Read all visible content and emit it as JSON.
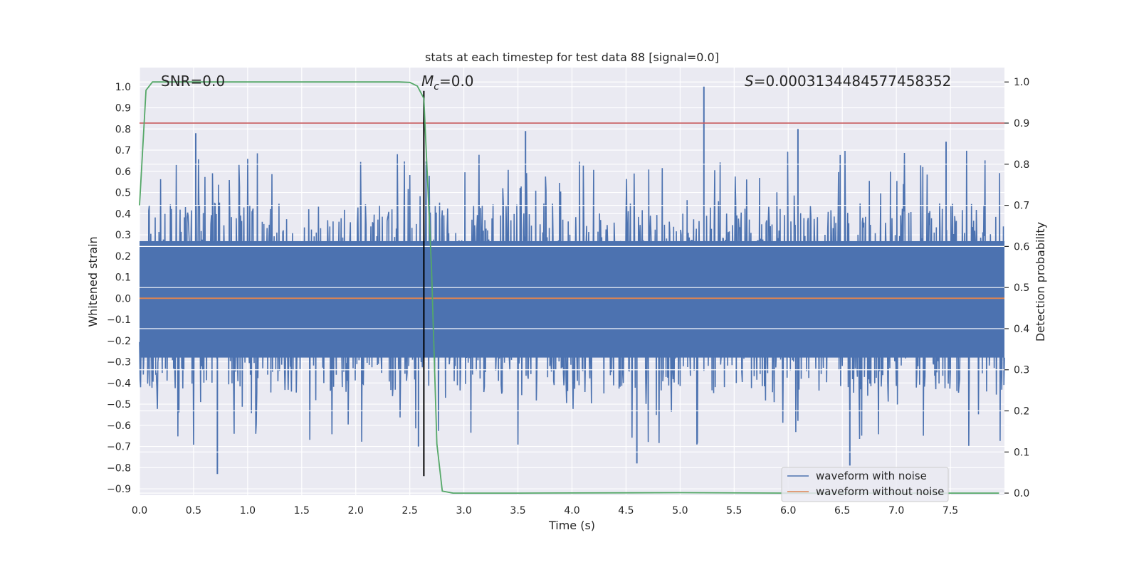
{
  "chart_data": {
    "type": "line",
    "title": "stats at each timestep for test data 88 [signal=0.0]",
    "xlabel": "Time (s)",
    "ylabel_left": "Whitened strain",
    "ylabel_right": "Detection probability",
    "xlim": [
      0.0,
      8.0
    ],
    "ylim_left": [
      -0.93,
      1.09
    ],
    "ylim_right": [
      -0.005,
      1.035
    ],
    "x_ticks": [
      "0.0",
      "0.5",
      "1.0",
      "1.5",
      "2.0",
      "2.5",
      "3.0",
      "3.5",
      "4.0",
      "4.5",
      "5.0",
      "5.5",
      "6.0",
      "6.5",
      "7.0",
      "7.5"
    ],
    "y_left_ticks": [
      "1.0",
      "0.9",
      "0.8",
      "0.7",
      "0.6",
      "0.5",
      "0.4",
      "0.3",
      "0.2",
      "0.1",
      "0.0",
      "−0.1",
      "−0.2",
      "−0.3",
      "−0.4",
      "−0.5",
      "−0.6",
      "−0.7",
      "−0.8",
      "−0.9"
    ],
    "y_right_ticks": [
      "1.0",
      "0.9",
      "0.8",
      "0.7",
      "0.6",
      "0.5",
      "0.4",
      "0.3",
      "0.2",
      "0.1",
      "0.0"
    ],
    "grid": true,
    "legend_position": "lower-right",
    "annotations": {
      "snr": "SNR=0.0",
      "mc_symbol": "M",
      "mc_subscript": "c",
      "mc_value": "=0.0",
      "s_symbol": "S",
      "s_value": "=0.0003134484577458352"
    },
    "series": [
      {
        "name": "waveform with noise",
        "axis": "left",
        "color": "#4c72b0",
        "envelope": {
          "upper_typical": 0.45,
          "upper_max": 1.0,
          "lower_typical": -0.45,
          "lower_min": -0.83,
          "peak_points": [
            {
              "x": 0.52,
              "y": 0.78
            },
            {
              "x": 0.72,
              "y": -0.83
            },
            {
              "x": 3.57,
              "y": 0.79
            },
            {
              "x": 5.22,
              "y": 1.0
            },
            {
              "x": 6.57,
              "y": -0.79
            },
            {
              "x": 4.6,
              "y": -0.78
            },
            {
              "x": 6.09,
              "y": 0.8
            },
            {
              "x": 7.46,
              "y": 0.74
            },
            {
              "x": 2.58,
              "y": -0.7
            }
          ]
        }
      },
      {
        "name": "waveform without noise",
        "axis": "left",
        "color": "#dd8452",
        "x": [
          0.0,
          8.0
        ],
        "values": [
          0.0,
          0.0
        ]
      },
      {
        "name": "detection probability",
        "axis": "right",
        "color": "#55a868",
        "x": [
          0.0,
          0.06,
          0.12,
          0.5,
          1.0,
          2.0,
          2.4,
          2.5,
          2.57,
          2.63,
          2.7,
          2.75,
          2.8,
          2.9,
          3.5,
          5.0,
          6.0,
          7.0,
          7.95
        ],
        "values": [
          0.7,
          0.98,
          1.0,
          1.0,
          1.0,
          1.0,
          1.0,
          0.999,
          0.99,
          0.96,
          0.55,
          0.12,
          0.005,
          0.0,
          0.0,
          0.001,
          0.0,
          0.0,
          0.0
        ]
      },
      {
        "name": "threshold",
        "axis": "right",
        "color": "#c44e52",
        "x": [
          0.0,
          8.0
        ],
        "values": [
          0.9,
          0.9
        ]
      },
      {
        "name": "detection time",
        "axis": "left",
        "color": "#000000",
        "x": [
          2.63,
          2.63
        ],
        "values": [
          -0.84,
          0.98
        ]
      }
    ],
    "legend": [
      "waveform with noise",
      "waveform without noise"
    ]
  }
}
